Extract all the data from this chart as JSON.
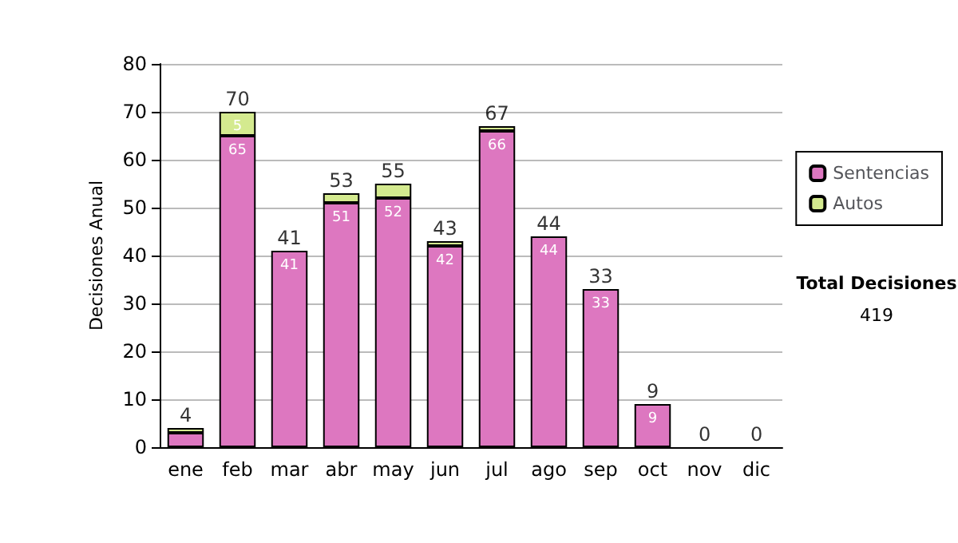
{
  "chart_data": {
    "type": "bar",
    "stacked": true,
    "ylabel": "Decisiones Anual",
    "categories": [
      "ene",
      "feb",
      "mar",
      "abr",
      "may",
      "jun",
      "jul",
      "ago",
      "sep",
      "oct",
      "nov",
      "dic"
    ],
    "series": [
      {
        "name": "Sentencias",
        "color": "#dd77c0",
        "values": [
          3,
          65,
          41,
          51,
          52,
          42,
          66,
          44,
          33,
          9,
          0,
          0
        ],
        "value_labels": [
          null,
          "65",
          "41",
          "51",
          "52",
          "42",
          "66",
          "44",
          "33",
          "9",
          null,
          null
        ]
      },
      {
        "name": "Autos",
        "color": "#d4ea8f",
        "values": [
          1,
          5,
          0,
          2,
          3,
          1,
          1,
          0,
          0,
          0,
          0,
          0
        ],
        "value_labels": [
          null,
          "5",
          null,
          null,
          null,
          null,
          null,
          null,
          null,
          null,
          null,
          null
        ]
      }
    ],
    "totals": [
      "4",
      "70",
      "41",
      "53",
      "55",
      "43",
      "67",
      "44",
      "33",
      "9",
      "0",
      "0"
    ],
    "ylim": [
      0,
      80
    ],
    "yticks": [
      0,
      10,
      20,
      30,
      40,
      50,
      60,
      70,
      80
    ],
    "grid": "y",
    "legend": "right",
    "annotations": [
      "Total Decisiones",
      "419"
    ]
  }
}
